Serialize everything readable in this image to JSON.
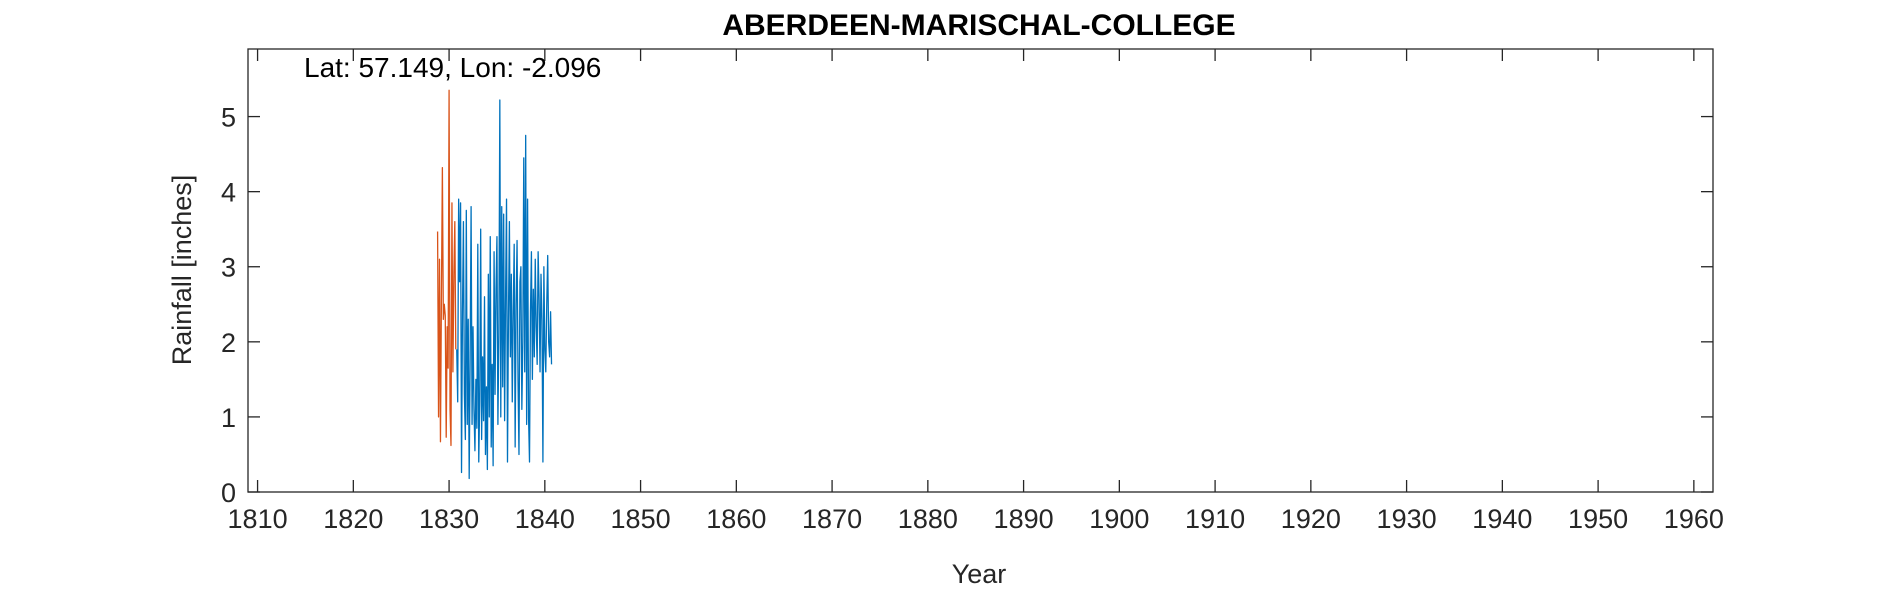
{
  "chart_data": {
    "type": "line",
    "title": "ABERDEEN-MARISCHAL-COLLEGE",
    "annotation": "Lat: 57.149, Lon: -2.096",
    "xlabel": "Year",
    "ylabel": "Rainfall [inches]",
    "xlim": [
      1809,
      1962
    ],
    "ylim": [
      0,
      5.9
    ],
    "xticks": [
      1810,
      1820,
      1830,
      1840,
      1850,
      1860,
      1870,
      1880,
      1890,
      1900,
      1910,
      1920,
      1930,
      1940,
      1950,
      1960
    ],
    "yticks": [
      0,
      1,
      2,
      3,
      4,
      5
    ],
    "grid": false,
    "series": [
      {
        "color": "#D95319",
        "x": [
          1828.8,
          1828.9,
          1829.0,
          1829.1,
          1829.2,
          1829.3,
          1829.4,
          1829.5,
          1829.6,
          1829.7,
          1829.8,
          1829.9,
          1830.0,
          1830.1,
          1830.2,
          1830.3,
          1830.4,
          1830.5,
          1830.6,
          1830.7
        ],
        "values": [
          3.47,
          1.0,
          3.1,
          0.67,
          2.6,
          4.32,
          2.3,
          2.5,
          2.35,
          0.73,
          2.2,
          1.65,
          5.35,
          1.1,
          0.62,
          3.85,
          1.6,
          2.9,
          3.6,
          1.9
        ]
      },
      {
        "color": "#0072BD",
        "x": [
          1830.8,
          1830.9,
          1831.0,
          1831.1,
          1831.2,
          1831.3,
          1831.4,
          1831.5,
          1831.6,
          1831.7,
          1831.8,
          1831.9,
          1832.0,
          1832.1,
          1832.2,
          1832.3,
          1832.4,
          1832.5,
          1832.6,
          1832.7,
          1832.8,
          1832.9,
          1833.0,
          1833.1,
          1833.2,
          1833.3,
          1833.4,
          1833.5,
          1833.6,
          1833.7,
          1833.8,
          1833.9,
          1834.0,
          1834.1,
          1834.2,
          1834.3,
          1834.4,
          1834.5,
          1834.6,
          1834.7,
          1834.8,
          1834.9,
          1835.0,
          1835.1,
          1835.2,
          1835.3,
          1835.4,
          1835.5,
          1835.6,
          1835.7,
          1835.8,
          1835.9,
          1836.0,
          1836.1,
          1836.2,
          1836.3,
          1836.4,
          1836.5,
          1836.6,
          1836.7,
          1836.8,
          1836.9,
          1837.0,
          1837.1,
          1837.2,
          1837.3,
          1837.4,
          1837.5,
          1837.6,
          1837.7,
          1837.8,
          1837.9,
          1838.0,
          1838.1,
          1838.2,
          1838.3,
          1838.4,
          1838.5,
          1838.6,
          1838.7,
          1838.8,
          1838.9,
          1839.0,
          1839.1,
          1839.2,
          1839.3,
          1839.4,
          1839.5,
          1839.6,
          1839.7,
          1839.8,
          1839.9,
          1840.0,
          1840.1,
          1840.2,
          1840.3,
          1840.4,
          1840.5,
          1840.6,
          1840.7
        ],
        "values": [
          1.9,
          1.2,
          3.9,
          2.8,
          3.85,
          0.26,
          2.4,
          3.6,
          1.3,
          0.7,
          3.75,
          0.9,
          2.3,
          0.18,
          1.8,
          3.8,
          0.9,
          2.2,
          1.1,
          0.55,
          1.5,
          0.85,
          3.3,
          0.4,
          1.2,
          3.5,
          0.7,
          1.8,
          0.95,
          2.6,
          0.5,
          1.4,
          0.3,
          2.9,
          1.0,
          3.4,
          0.6,
          1.7,
          0.35,
          3.2,
          1.3,
          2.7,
          3.4,
          0.9,
          2.1,
          5.22,
          1.0,
          3.8,
          1.4,
          3.7,
          0.95,
          2.6,
          3.9,
          0.4,
          2.3,
          3.6,
          1.8,
          2.9,
          1.2,
          2.4,
          3.3,
          0.6,
          2.5,
          3.35,
          1.5,
          0.5,
          2.8,
          3.0,
          1.1,
          2.0,
          4.45,
          1.6,
          4.75,
          0.9,
          3.9,
          1.0,
          0.4,
          2.4,
          3.2,
          1.5,
          2.7,
          1.8,
          3.1,
          2.2,
          1.7,
          3.2,
          2.6,
          1.6,
          2.9,
          2.3,
          0.4,
          3.0,
          1.9,
          1.6,
          2.5,
          3.15,
          2.0,
          1.8,
          2.4,
          1.7
        ]
      }
    ]
  }
}
